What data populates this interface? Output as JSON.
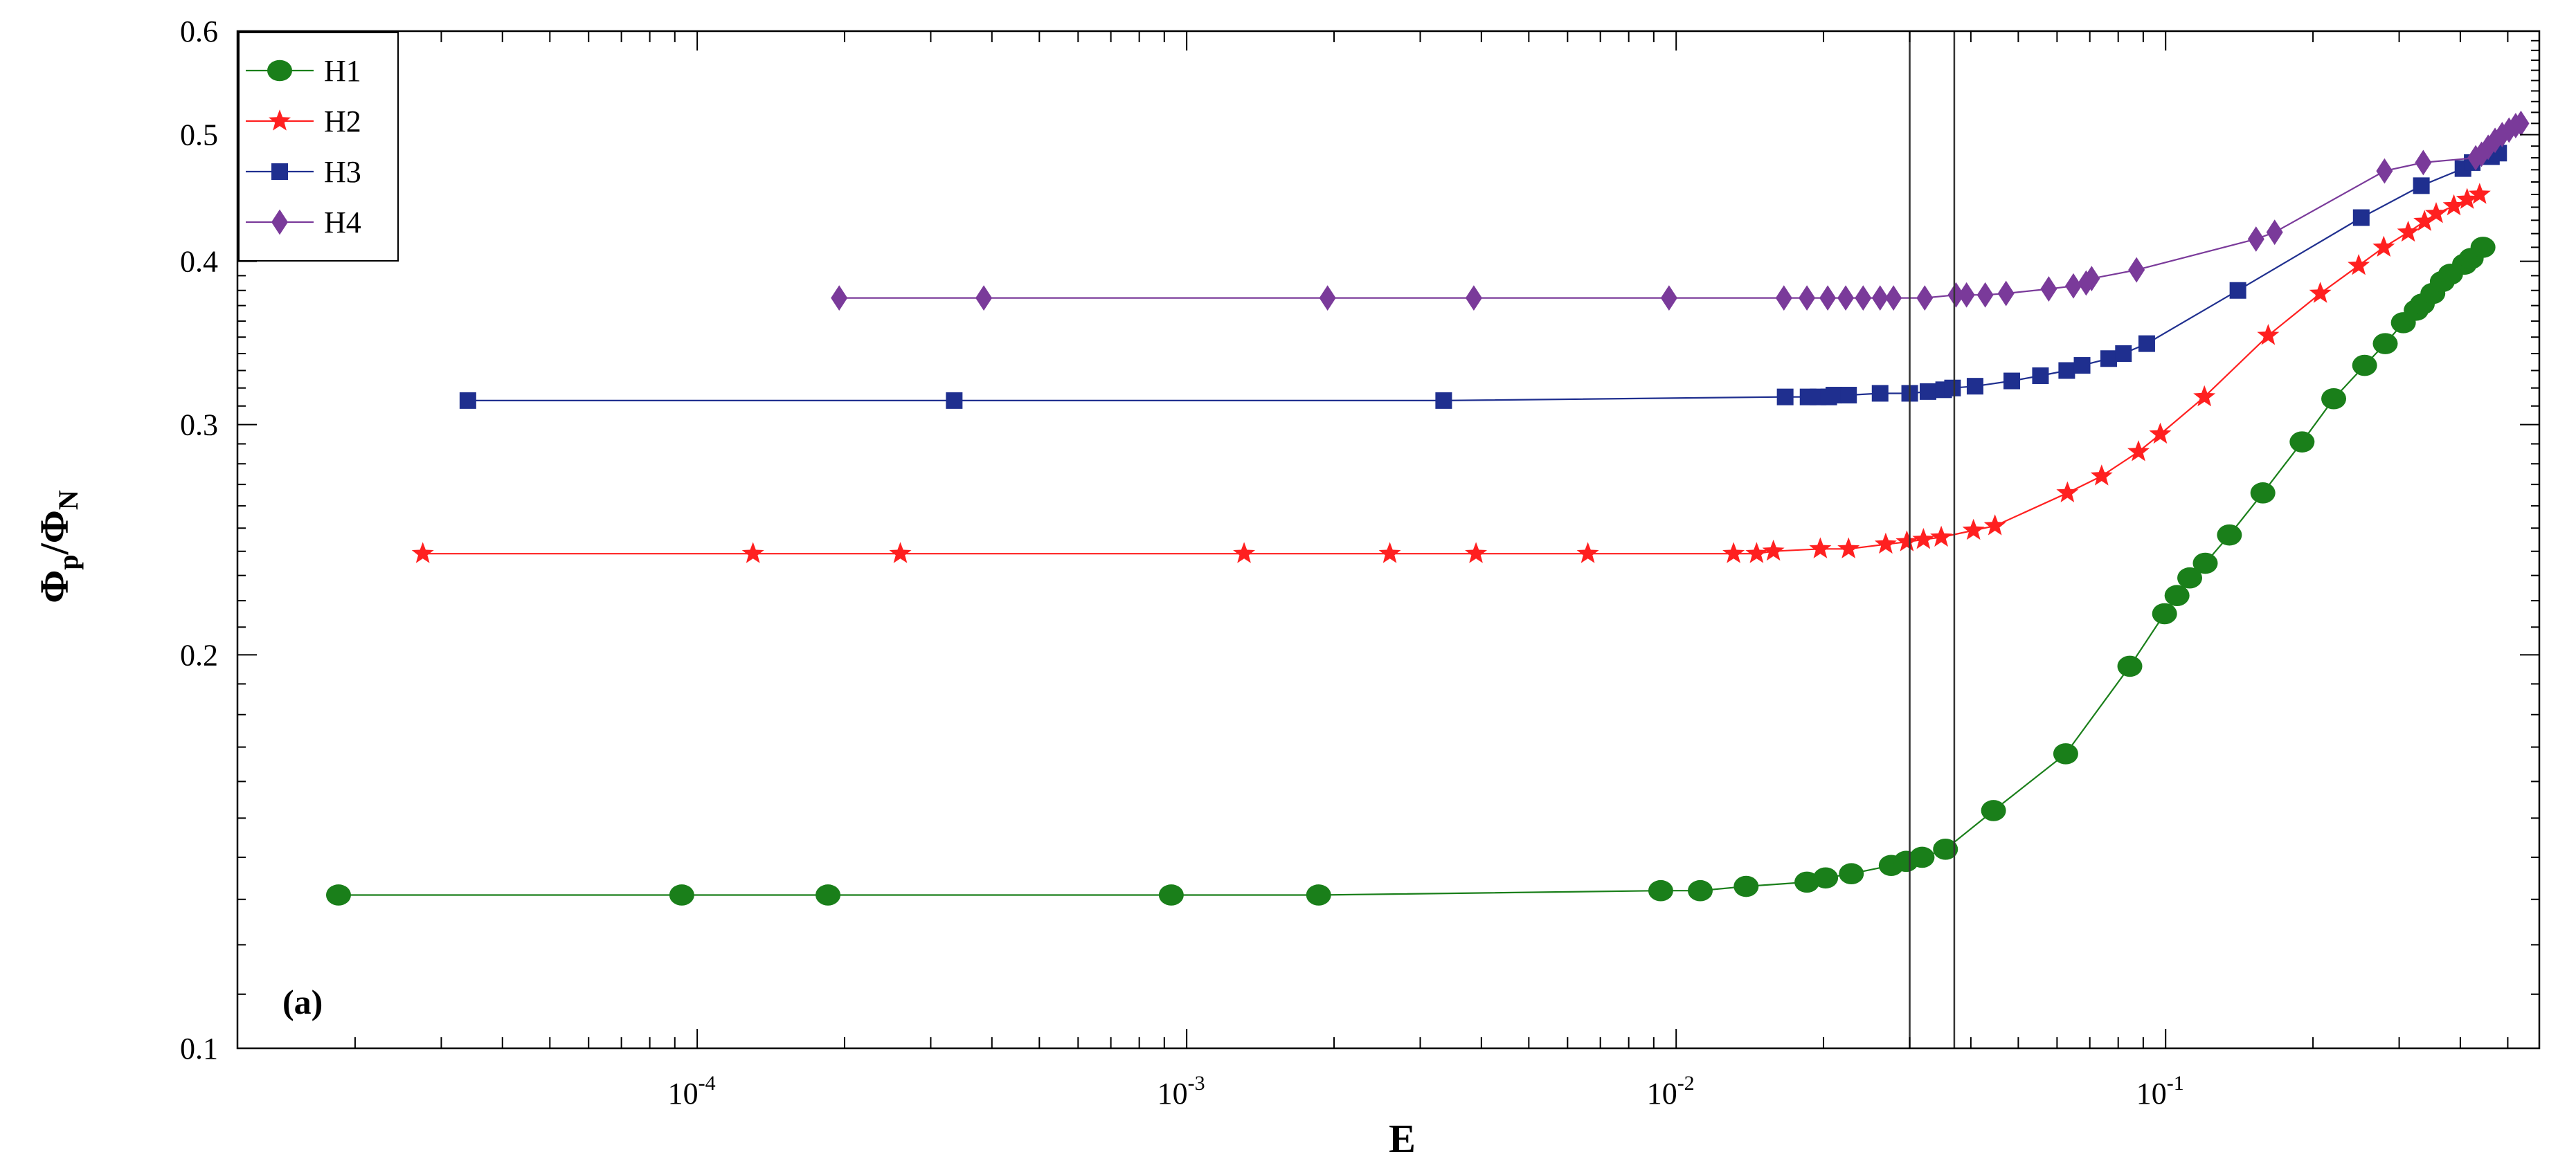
{
  "chart_data": {
    "type": "scatter",
    "xscale": "log",
    "yscale": "log",
    "xlabel": "E",
    "ylabel": {
      "base": "Φ",
      "sub1": "p",
      "sep": "/Φ",
      "sub2": "N"
    },
    "xlim": [
      1.15e-05,
      0.58
    ],
    "ylim": [
      0.1,
      0.6
    ],
    "xticks": [
      {
        "value": 0.0001,
        "base": "10",
        "exp": "-4"
      },
      {
        "value": 0.001,
        "base": "10",
        "exp": "-3"
      },
      {
        "value": 0.01,
        "base": "10",
        "exp": "-2"
      },
      {
        "value": 0.1,
        "base": "10",
        "exp": "-1"
      }
    ],
    "yticks": [
      {
        "value": 0.1,
        "label": "0.1"
      },
      {
        "value": 0.2,
        "label": "0.2"
      },
      {
        "value": 0.3,
        "label": "0.3"
      },
      {
        "value": 0.4,
        "label": "0.4"
      },
      {
        "value": 0.5,
        "label": "0.5"
      },
      {
        "value": 0.6,
        "label": "0.6"
      }
    ],
    "grid": false,
    "legend_position": "top-left",
    "annotation": "(a)",
    "vlines": [
      0.03,
      0.037
    ],
    "series": [
      {
        "name": "H1",
        "color": "#1a7f1a",
        "marker": "circle",
        "x": [
          1.85e-05,
          9.3e-05,
          0.000185,
          0.00093,
          0.00186,
          0.0093,
          0.0112,
          0.0139,
          0.0185,
          0.0202,
          0.0228,
          0.0275,
          0.0295,
          0.0318,
          0.0355,
          0.0445,
          0.0625,
          0.0845,
          0.0995,
          0.1055,
          0.112,
          0.1205,
          0.135,
          0.158,
          0.19,
          0.2205,
          0.255,
          0.281,
          0.306,
          0.325,
          0.3345,
          0.3515,
          0.3675,
          0.382,
          0.408,
          0.421,
          0.445
        ],
        "y": [
          0.131,
          0.131,
          0.131,
          0.131,
          0.131,
          0.132,
          0.132,
          0.133,
          0.134,
          0.135,
          0.136,
          0.138,
          0.139,
          0.14,
          0.142,
          0.152,
          0.168,
          0.196,
          0.215,
          0.222,
          0.229,
          0.235,
          0.247,
          0.266,
          0.291,
          0.314,
          0.333,
          0.346,
          0.359,
          0.367,
          0.371,
          0.378,
          0.386,
          0.391,
          0.398,
          0.402,
          0.41
        ]
      },
      {
        "name": "H2",
        "color": "#ff2020",
        "marker": "star",
        "x": [
          2.75e-05,
          0.00013,
          0.00026,
          0.00131,
          0.0026,
          0.0039,
          0.0066,
          0.0131,
          0.0146,
          0.0158,
          0.0197,
          0.0225,
          0.0268,
          0.0296,
          0.032,
          0.0348,
          0.0405,
          0.0448,
          0.063,
          0.074,
          0.088,
          0.0975,
          0.12,
          0.162,
          0.207,
          0.248,
          0.279,
          0.313,
          0.338,
          0.357,
          0.388,
          0.413,
          0.438
        ],
        "y": [
          0.239,
          0.239,
          0.239,
          0.239,
          0.239,
          0.239,
          0.239,
          0.239,
          0.239,
          0.24,
          0.241,
          0.241,
          0.243,
          0.244,
          0.245,
          0.246,
          0.249,
          0.251,
          0.266,
          0.274,
          0.286,
          0.295,
          0.315,
          0.351,
          0.378,
          0.397,
          0.41,
          0.421,
          0.429,
          0.435,
          0.441,
          0.446,
          0.45
        ]
      },
      {
        "name": "H3",
        "color": "#1f2f8f",
        "marker": "square",
        "x": [
          3.4e-05,
          0.000335,
          0.00335,
          0.0167,
          0.0186,
          0.0195,
          0.0205,
          0.021,
          0.0225,
          0.0261,
          0.03,
          0.0327,
          0.0352,
          0.0367,
          0.0408,
          0.0485,
          0.0555,
          0.0628,
          0.0675,
          0.0765,
          0.082,
          0.0915,
          0.1405,
          0.251,
          0.333,
          0.405,
          0.423,
          0.463,
          0.479
        ],
        "y": [
          0.313,
          0.313,
          0.313,
          0.315,
          0.315,
          0.315,
          0.315,
          0.316,
          0.316,
          0.317,
          0.317,
          0.318,
          0.319,
          0.32,
          0.321,
          0.324,
          0.327,
          0.33,
          0.333,
          0.337,
          0.34,
          0.346,
          0.38,
          0.432,
          0.457,
          0.471,
          0.476,
          0.481,
          0.484
        ]
      },
      {
        "name": "H4",
        "color": "#7a3a9a",
        "marker": "diamond",
        "x": [
          0.000195,
          0.000385,
          0.00194,
          0.00386,
          0.00967,
          0.0166,
          0.0185,
          0.0204,
          0.0222,
          0.0241,
          0.0261,
          0.0278,
          0.0322,
          0.0373,
          0.0392,
          0.0428,
          0.0472,
          0.0577,
          0.0648,
          0.0688,
          0.0706,
          0.0872,
          0.153,
          0.167,
          0.28,
          0.336,
          0.43,
          0.442,
          0.456,
          0.471,
          0.487,
          0.503,
          0.519,
          0.532
        ],
        "y": [
          0.375,
          0.375,
          0.375,
          0.375,
          0.375,
          0.375,
          0.375,
          0.375,
          0.375,
          0.375,
          0.375,
          0.375,
          0.375,
          0.377,
          0.377,
          0.377,
          0.378,
          0.381,
          0.383,
          0.385,
          0.388,
          0.394,
          0.416,
          0.421,
          0.469,
          0.476,
          0.48,
          0.483,
          0.489,
          0.495,
          0.5,
          0.504,
          0.508,
          0.51
        ]
      }
    ]
  }
}
